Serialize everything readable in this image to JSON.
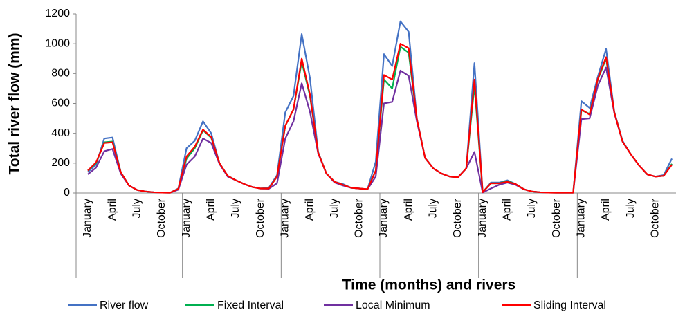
{
  "chart_data": {
    "type": "line",
    "y_label": "Total river flow (mm)",
    "x_label": "Time (months) and rivers",
    "categories": [
      "January",
      null,
      null,
      "April",
      null,
      null,
      "July",
      null,
      null,
      "October",
      null,
      null,
      "January",
      null,
      null,
      "April",
      null,
      null,
      "July",
      null,
      null,
      "October",
      null,
      null,
      "January",
      null,
      null,
      "April",
      null,
      null,
      "July",
      null,
      null,
      "October",
      null,
      null,
      "January",
      null,
      null,
      "April",
      null,
      null,
      "July",
      null,
      null,
      "October",
      null,
      null,
      "January",
      null,
      null,
      "April",
      null,
      null,
      "July",
      null,
      null,
      "October",
      null,
      null,
      "January",
      null,
      null,
      "April",
      null,
      null,
      "July",
      null,
      null,
      "October",
      null,
      null
    ],
    "series": [
      {
        "name": "River flow",
        "color": "#4472c4",
        "values": [
          140,
          190,
          365,
          372,
          140,
          50,
          20,
          10,
          5,
          3,
          2,
          30,
          300,
          350,
          480,
          400,
          200,
          115,
          85,
          60,
          40,
          30,
          35,
          120,
          540,
          650,
          1065,
          770,
          275,
          130,
          75,
          60,
          35,
          30,
          25,
          210,
          930,
          850,
          1150,
          1080,
          500,
          235,
          165,
          130,
          110,
          105,
          165,
          870,
          5,
          70,
          70,
          85,
          60,
          25,
          10,
          5,
          3,
          2,
          2,
          2,
          615,
          570,
          780,
          965,
          545,
          350,
          260,
          185,
          125,
          110,
          120,
          230
        ]
      },
      {
        "name": "Fixed Interval",
        "color": "#00b050",
        "values": [
          150,
          200,
          340,
          345,
          140,
          50,
          20,
          10,
          5,
          3,
          2,
          28,
          230,
          300,
          420,
          370,
          200,
          115,
          85,
          60,
          40,
          30,
          30,
          110,
          450,
          560,
          880,
          650,
          270,
          130,
          75,
          55,
          35,
          30,
          25,
          150,
          760,
          700,
          980,
          940,
          490,
          235,
          165,
          130,
          110,
          105,
          165,
          720,
          5,
          65,
          65,
          80,
          60,
          25,
          10,
          5,
          3,
          2,
          2,
          2,
          555,
          530,
          760,
          900,
          540,
          345,
          260,
          185,
          125,
          110,
          115,
          195
        ]
      },
      {
        "name": "Local Minimum",
        "color": "#7030a0",
        "values": [
          125,
          170,
          280,
          295,
          130,
          50,
          20,
          10,
          5,
          3,
          2,
          22,
          190,
          245,
          365,
          335,
          195,
          110,
          85,
          60,
          40,
          30,
          28,
          65,
          365,
          480,
          735,
          545,
          265,
          130,
          70,
          50,
          35,
          30,
          25,
          110,
          600,
          610,
          820,
          785,
          480,
          235,
          165,
          130,
          110,
          105,
          165,
          275,
          3,
          30,
          55,
          70,
          55,
          25,
          10,
          5,
          3,
          2,
          2,
          2,
          495,
          500,
          720,
          840,
          535,
          345,
          260,
          185,
          125,
          110,
          115,
          190
        ]
      },
      {
        "name": "Sliding Interval",
        "color": "#ff0000",
        "values": [
          150,
          205,
          335,
          340,
          140,
          50,
          20,
          10,
          5,
          3,
          2,
          28,
          245,
          310,
          425,
          375,
          200,
          115,
          85,
          60,
          40,
          30,
          30,
          110,
          450,
          560,
          900,
          660,
          270,
          130,
          75,
          55,
          35,
          30,
          25,
          150,
          790,
          760,
          1000,
          970,
          495,
          235,
          165,
          130,
          110,
          105,
          165,
          760,
          5,
          65,
          65,
          75,
          60,
          25,
          10,
          5,
          3,
          2,
          2,
          2,
          560,
          525,
          765,
          910,
          540,
          345,
          260,
          185,
          125,
          110,
          115,
          190
        ]
      }
    ],
    "ylim": [
      0,
      1200
    ],
    "yticks": [
      0,
      200,
      400,
      600,
      800,
      1000,
      1200
    ],
    "grid": false
  }
}
